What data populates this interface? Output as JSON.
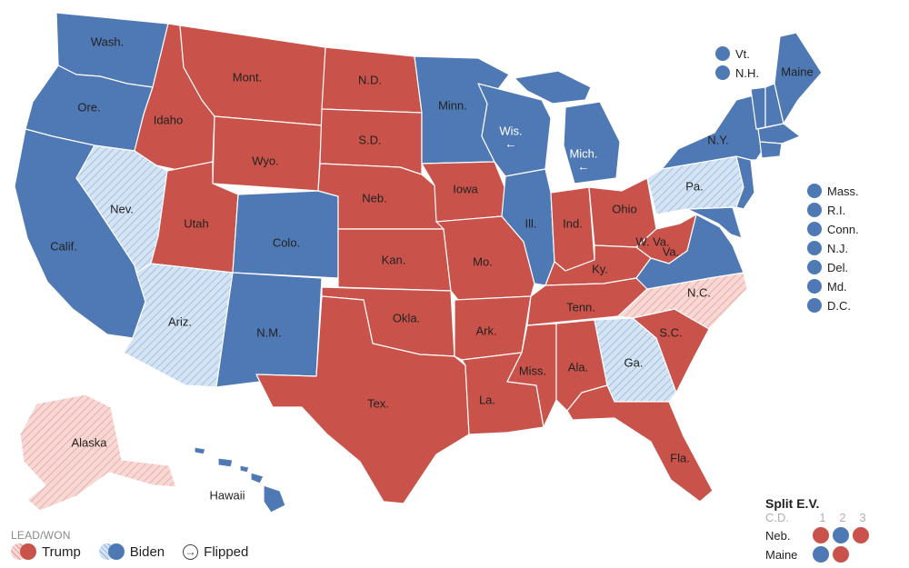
{
  "colors": {
    "trump": "#c9534a",
    "biden": "#4f79b4",
    "trump_lead": "#f6d0cc",
    "biden_lead": "#d4e4f4",
    "border": "#ffffff",
    "text": "#222222"
  },
  "states": [
    {
      "label": "Wash.",
      "status": "biden-won"
    },
    {
      "label": "Ore.",
      "status": "biden-won"
    },
    {
      "label": "Calif.",
      "status": "biden-won"
    },
    {
      "label": "Idaho",
      "status": "trump-won"
    },
    {
      "label": "Nev.",
      "status": "biden-lead"
    },
    {
      "label": "Mont.",
      "status": "trump-won"
    },
    {
      "label": "Wyo.",
      "status": "trump-won"
    },
    {
      "label": "Utah",
      "status": "trump-won"
    },
    {
      "label": "Ariz.",
      "status": "biden-lead"
    },
    {
      "label": "Colo.",
      "status": "biden-won"
    },
    {
      "label": "N.M.",
      "status": "biden-won"
    },
    {
      "label": "N.D.",
      "status": "trump-won"
    },
    {
      "label": "S.D.",
      "status": "trump-won"
    },
    {
      "label": "Neb.",
      "status": "trump-won"
    },
    {
      "label": "Kan.",
      "status": "trump-won"
    },
    {
      "label": "Okla.",
      "status": "trump-won"
    },
    {
      "label": "Tex.",
      "status": "trump-won"
    },
    {
      "label": "Minn.",
      "status": "biden-won"
    },
    {
      "label": "Iowa",
      "status": "trump-won"
    },
    {
      "label": "Mo.",
      "status": "trump-won"
    },
    {
      "label": "Ark.",
      "status": "trump-won"
    },
    {
      "label": "La.",
      "status": "trump-won"
    },
    {
      "label": "Wis.",
      "status": "biden-won",
      "flipped": true
    },
    {
      "label": "Ill.",
      "status": "biden-won"
    },
    {
      "label": "Mich.",
      "status": "biden-won",
      "flipped": true
    },
    {
      "label": "Ind.",
      "status": "trump-won"
    },
    {
      "label": "Ohio",
      "status": "trump-won"
    },
    {
      "label": "Ky.",
      "status": "trump-won"
    },
    {
      "label": "Tenn.",
      "status": "trump-won"
    },
    {
      "label": "Miss.",
      "status": "trump-won"
    },
    {
      "label": "Ala.",
      "status": "trump-won"
    },
    {
      "label": "Ga.",
      "status": "biden-lead"
    },
    {
      "label": "Fla.",
      "status": "trump-won"
    },
    {
      "label": "S.C.",
      "status": "trump-won"
    },
    {
      "label": "N.C.",
      "status": "trump-lead"
    },
    {
      "label": "Va.",
      "status": "biden-won"
    },
    {
      "label": "W. Va.",
      "status": "trump-won"
    },
    {
      "label": "Pa.",
      "status": "biden-lead"
    },
    {
      "label": "N.Y.",
      "status": "biden-won"
    },
    {
      "label": "Maine",
      "status": "biden-won"
    },
    {
      "label": "Alaska",
      "status": "trump-lead"
    },
    {
      "label": "Hawaii",
      "status": "biden-won"
    }
  ],
  "small_states_top": [
    {
      "label": "Vt.",
      "status": "biden-won"
    },
    {
      "label": "N.H.",
      "status": "biden-won"
    }
  ],
  "small_states_east": [
    {
      "label": "Mass.",
      "status": "biden-won"
    },
    {
      "label": "R.I.",
      "status": "biden-won"
    },
    {
      "label": "Conn.",
      "status": "biden-won"
    },
    {
      "label": "N.J.",
      "status": "biden-won"
    },
    {
      "label": "Del.",
      "status": "biden-won"
    },
    {
      "label": "Md.",
      "status": "biden-won"
    },
    {
      "label": "D.C.",
      "status": "biden-won"
    }
  ],
  "legend": {
    "title": "LEAD/WON",
    "trump": "Trump",
    "biden": "Biden",
    "flipped": "Flipped",
    "flip_glyph": "→"
  },
  "split_ev": {
    "title": "Split E.V.",
    "cd_label": "C.D.",
    "districts": [
      "1",
      "2",
      "3"
    ],
    "rows": [
      {
        "name": "Neb.",
        "statewide": "trump-won",
        "districts": [
          "trump-won",
          "biden-won",
          "trump-won"
        ]
      },
      {
        "name": "Maine",
        "statewide": "biden-won",
        "districts": [
          "biden-won",
          "trump-won"
        ]
      }
    ]
  }
}
